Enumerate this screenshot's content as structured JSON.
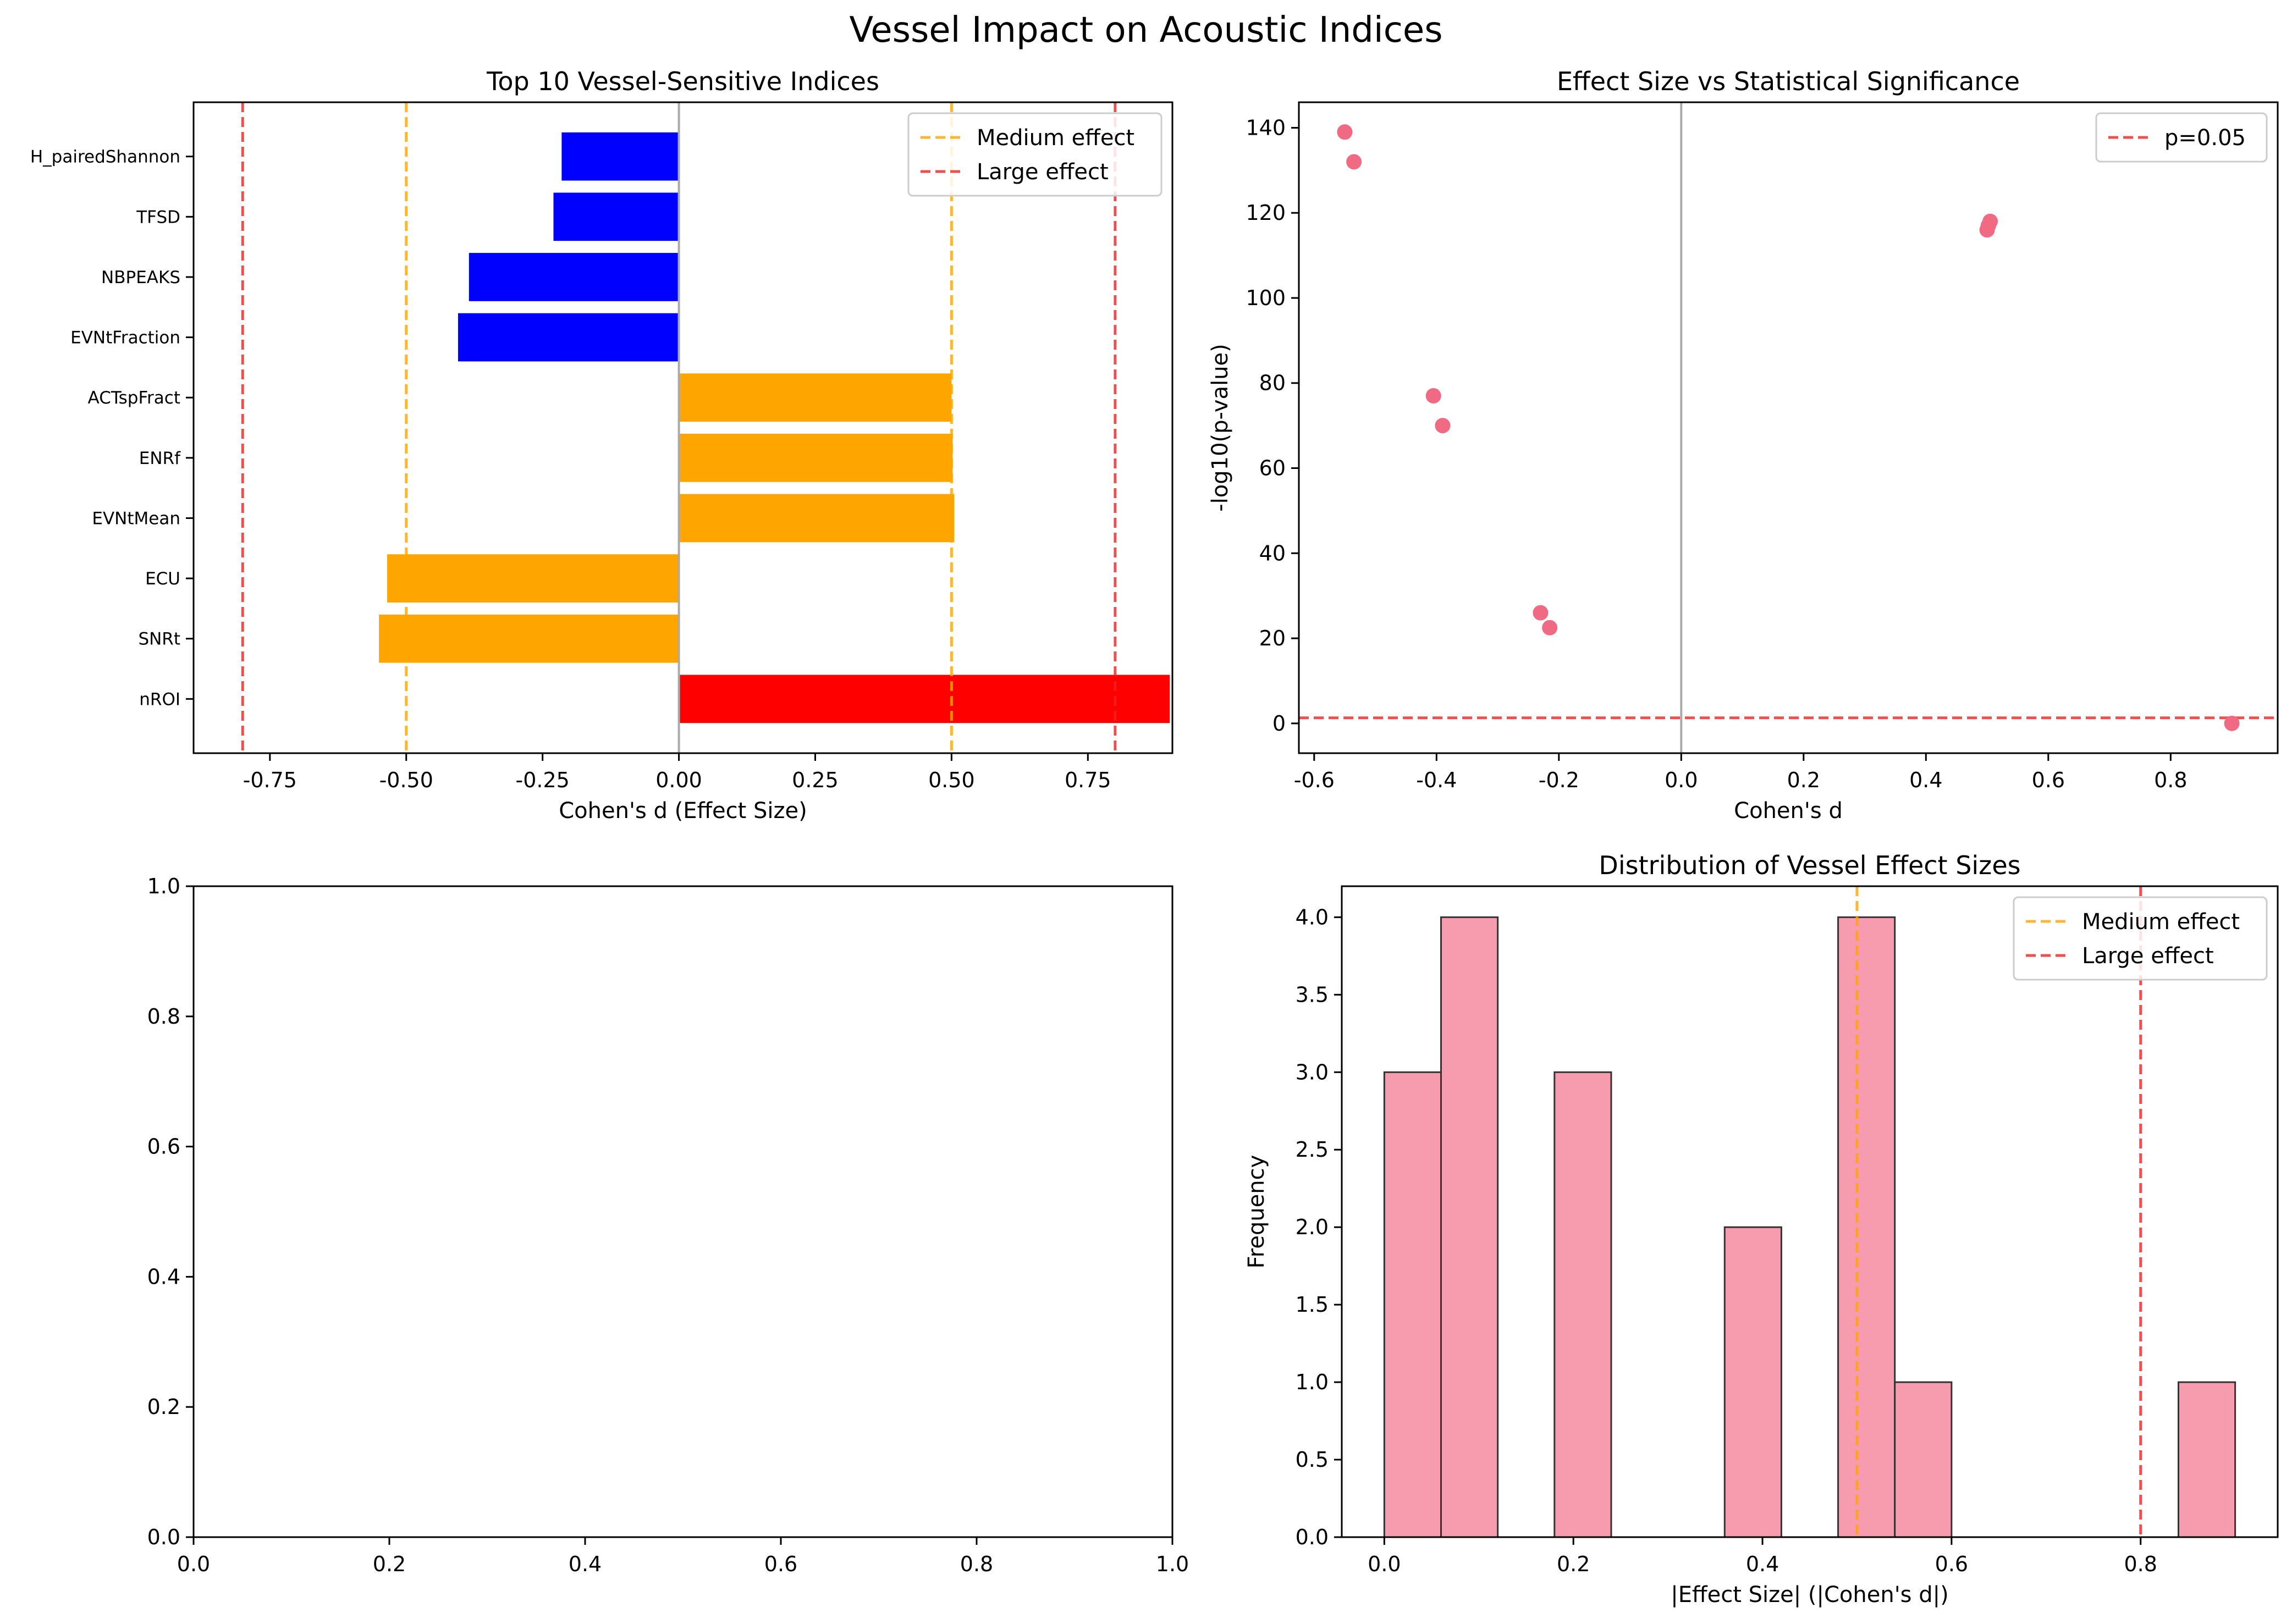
{
  "figure": {
    "title": "Vessel Impact on Acoustic Indices"
  },
  "colors": {
    "medium_line": "#FFA500",
    "large_line": "#EE2222",
    "bar_red": "#FF0000",
    "bar_orange": "#FFA500",
    "bar_blue": "#0000FF",
    "scatter_point": "#EF6A82",
    "hist_fill": "#F79CAE",
    "zero_line": "#AAAAAA"
  },
  "chart_data": [
    {
      "type": "bar",
      "orientation": "horizontal",
      "title": "Top 10 Vessel-Sensitive Indices",
      "xlabel": "Cohen's d (Effect Size)",
      "ylabel": "",
      "xlim": [
        -0.89,
        0.905
      ],
      "xticks": [
        -0.75,
        -0.5,
        -0.25,
        0.0,
        0.25,
        0.5,
        0.75
      ],
      "categories": [
        "nROI",
        "SNRt",
        "ECU",
        "EVNtMean",
        "ENRf",
        "ACTspFract",
        "EVNtFraction",
        "NBPEAKS",
        "TFSD",
        "H_pairedShannon"
      ],
      "values": [
        0.9,
        -0.55,
        -0.535,
        0.505,
        0.502,
        0.5,
        -0.405,
        -0.385,
        -0.23,
        -0.215
      ],
      "bar_colors": [
        "bar_red",
        "bar_orange",
        "bar_orange",
        "bar_orange",
        "bar_orange",
        "bar_orange",
        "bar_blue",
        "bar_blue",
        "bar_blue",
        "bar_blue"
      ],
      "reference_lines": [
        {
          "x": -0.8,
          "kind": "large"
        },
        {
          "x": -0.5,
          "kind": "medium"
        },
        {
          "x": 0.5,
          "kind": "medium"
        },
        {
          "x": 0.8,
          "kind": "large"
        }
      ],
      "legend": {
        "position": "top-right",
        "entries": [
          {
            "label": "Medium effect",
            "kind": "medium"
          },
          {
            "label": "Large effect",
            "kind": "large"
          }
        ]
      }
    },
    {
      "type": "scatter",
      "title": "Effect Size vs Statistical Significance",
      "xlabel": "Cohen's d",
      "ylabel": "-log10(p-value)",
      "xlim": [
        -0.625,
        0.975
      ],
      "ylim": [
        -7,
        146
      ],
      "xticks": [
        -0.6,
        -0.4,
        -0.2,
        0.0,
        0.2,
        0.4,
        0.6,
        0.8
      ],
      "yticks": [
        0,
        20,
        40,
        60,
        80,
        100,
        120,
        140
      ],
      "points": [
        {
          "x": -0.55,
          "y": 139
        },
        {
          "x": -0.535,
          "y": 132
        },
        {
          "x": -0.405,
          "y": 77
        },
        {
          "x": -0.39,
          "y": 70
        },
        {
          "x": -0.23,
          "y": 26
        },
        {
          "x": -0.215,
          "y": 22.5
        },
        {
          "x": 0.5,
          "y": 116
        },
        {
          "x": 0.502,
          "y": 117
        },
        {
          "x": 0.505,
          "y": 118
        },
        {
          "x": 0.9,
          "y": 0
        }
      ],
      "reference_lines": [
        {
          "y": 1.301,
          "kind": "large",
          "label": "p=0.05"
        }
      ],
      "legend": {
        "position": "top-right",
        "entries": [
          {
            "label": "p=0.05",
            "kind": "large"
          }
        ]
      }
    },
    {
      "type": "empty",
      "title": "",
      "xlim": [
        0,
        1
      ],
      "ylim": [
        0,
        1
      ],
      "xticks": [
        0.0,
        0.2,
        0.4,
        0.6,
        0.8,
        1.0
      ],
      "yticks": [
        0.0,
        0.2,
        0.4,
        0.6,
        0.8,
        1.0
      ]
    },
    {
      "type": "histogram",
      "title": "Distribution of Vessel Effect Sizes",
      "xlabel": "|Effect Size| (|Cohen's d|)",
      "ylabel": "Frequency",
      "xlim": [
        -0.045,
        0.945
      ],
      "ylim": [
        0,
        4.2
      ],
      "xticks": [
        0.0,
        0.2,
        0.4,
        0.6,
        0.8
      ],
      "yticks": [
        0.0,
        0.5,
        1.0,
        1.5,
        2.0,
        2.5,
        3.0,
        3.5,
        4.0
      ],
      "bin_edges": [
        0.0,
        0.06,
        0.12,
        0.18,
        0.24,
        0.3,
        0.36,
        0.42,
        0.48,
        0.54,
        0.6,
        0.66,
        0.72,
        0.78,
        0.84,
        0.9
      ],
      "counts": [
        3,
        4,
        0,
        3,
        0,
        0,
        2,
        0,
        4,
        1,
        0,
        0,
        0,
        0,
        1
      ],
      "reference_lines": [
        {
          "x": 0.5,
          "kind": "medium"
        },
        {
          "x": 0.8,
          "kind": "large"
        }
      ],
      "legend": {
        "position": "top-right",
        "entries": [
          {
            "label": "Medium effect",
            "kind": "medium"
          },
          {
            "label": "Large effect",
            "kind": "large"
          }
        ]
      }
    }
  ]
}
